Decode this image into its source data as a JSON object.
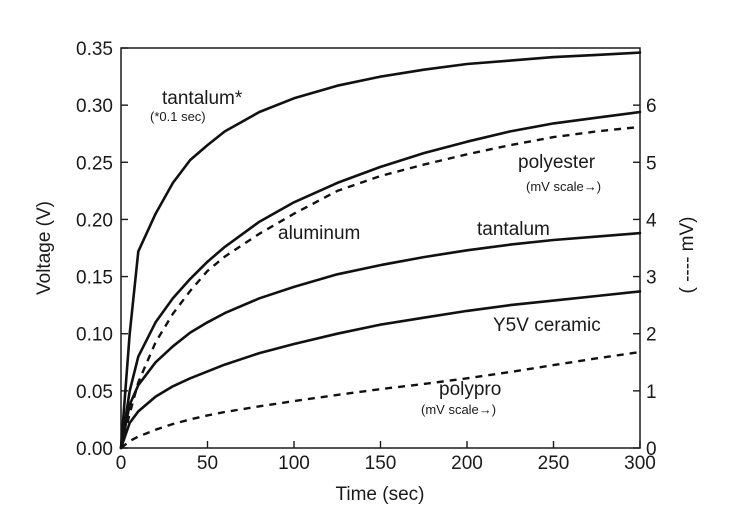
{
  "chart_data": {
    "type": "line",
    "title": "",
    "xlabel": "Time (sec)",
    "ylabel": "Voltage (V)",
    "y2label": "( ---- mV)",
    "xlim": [
      0,
      300
    ],
    "ylim": [
      0,
      0.35
    ],
    "y2lim": [
      0,
      7
    ],
    "x_ticks": [
      0,
      50,
      100,
      150,
      200,
      250,
      300
    ],
    "x_tick_labels": [
      "0",
      "50",
      "100",
      "150",
      "200",
      "250",
      "300"
    ],
    "y_ticks": [
      0,
      0.05,
      0.1,
      0.15,
      0.2,
      0.25,
      0.3,
      0.35
    ],
    "y_tick_labels": [
      "0.00",
      "0.05",
      "0.10",
      "0.15",
      "0.20",
      "0.25",
      "0.30",
      "0.35"
    ],
    "y2_ticks": [
      0,
      1,
      2,
      3,
      4,
      5,
      6
    ],
    "y2_tick_labels": [
      "0",
      "1",
      "2",
      "3",
      "4",
      "5",
      "6"
    ],
    "grid": false,
    "series": [
      {
        "name": "tantalum*",
        "note": "(*0.1 sec)",
        "style": "solid",
        "axis": "left",
        "x": [
          0,
          5,
          10,
          20,
          30,
          40,
          50,
          60,
          80,
          100,
          125,
          150,
          175,
          200,
          225,
          250,
          275,
          300
        ],
        "y": [
          0,
          0.1,
          0.172,
          0.205,
          0.232,
          0.252,
          0.265,
          0.277,
          0.294,
          0.306,
          0.317,
          0.325,
          0.331,
          0.336,
          0.339,
          0.342,
          0.344,
          0.346
        ]
      },
      {
        "name": "aluminum",
        "style": "solid",
        "axis": "left",
        "x": [
          0,
          5,
          10,
          20,
          30,
          40,
          50,
          60,
          80,
          100,
          125,
          150,
          175,
          200,
          225,
          250,
          275,
          300
        ],
        "y": [
          0,
          0.05,
          0.08,
          0.11,
          0.131,
          0.148,
          0.163,
          0.176,
          0.198,
          0.215,
          0.232,
          0.246,
          0.258,
          0.268,
          0.277,
          0.284,
          0.289,
          0.294
        ]
      },
      {
        "name": "polyester",
        "note": "(mV scale→)",
        "style": "dashed",
        "axis": "right",
        "x": [
          0,
          5,
          10,
          20,
          30,
          40,
          50,
          60,
          80,
          100,
          125,
          150,
          175,
          200,
          225,
          250,
          275,
          300
        ],
        "y": [
          0,
          0.6,
          1.15,
          1.85,
          2.35,
          2.75,
          3.1,
          3.35,
          3.75,
          4.1,
          4.5,
          4.76,
          4.96,
          5.14,
          5.3,
          5.44,
          5.54,
          5.62
        ]
      },
      {
        "name": "tantalum",
        "style": "solid",
        "axis": "left",
        "x": [
          0,
          5,
          10,
          20,
          30,
          40,
          50,
          60,
          80,
          100,
          125,
          150,
          175,
          200,
          225,
          250,
          275,
          300
        ],
        "y": [
          0,
          0.038,
          0.055,
          0.075,
          0.089,
          0.101,
          0.11,
          0.118,
          0.131,
          0.141,
          0.152,
          0.16,
          0.167,
          0.173,
          0.178,
          0.182,
          0.185,
          0.188
        ]
      },
      {
        "name": "Y5V ceramic",
        "style": "solid",
        "axis": "left",
        "x": [
          0,
          5,
          10,
          20,
          30,
          40,
          50,
          60,
          80,
          100,
          125,
          150,
          175,
          200,
          225,
          250,
          275,
          300
        ],
        "y": [
          0,
          0.022,
          0.032,
          0.045,
          0.054,
          0.061,
          0.067,
          0.073,
          0.083,
          0.091,
          0.1,
          0.108,
          0.114,
          0.12,
          0.125,
          0.129,
          0.133,
          0.137
        ]
      },
      {
        "name": "polypro",
        "note": "(mV scale→)",
        "style": "dashed",
        "axis": "right",
        "x": [
          0,
          5,
          10,
          20,
          30,
          40,
          50,
          60,
          80,
          100,
          125,
          150,
          175,
          200,
          225,
          250,
          275,
          300
        ],
        "y": [
          0,
          0.12,
          0.2,
          0.32,
          0.42,
          0.5,
          0.57,
          0.63,
          0.73,
          0.82,
          0.93,
          1.03,
          1.12,
          1.22,
          1.33,
          1.45,
          1.57,
          1.68
        ]
      }
    ],
    "annotations": [
      {
        "text": "tantalum*",
        "small": false
      },
      {
        "text": "(*0.1 sec)",
        "small": true
      },
      {
        "text": "polyester",
        "small": false
      },
      {
        "text": "(mV scale→)",
        "small": true
      },
      {
        "text": "aluminum",
        "small": false
      },
      {
        "text": "tantalum",
        "small": false
      },
      {
        "text": "Y5V ceramic",
        "small": false
      },
      {
        "text": "polypro",
        "small": false
      },
      {
        "text": "(mV scale→)",
        "small": true
      }
    ]
  }
}
